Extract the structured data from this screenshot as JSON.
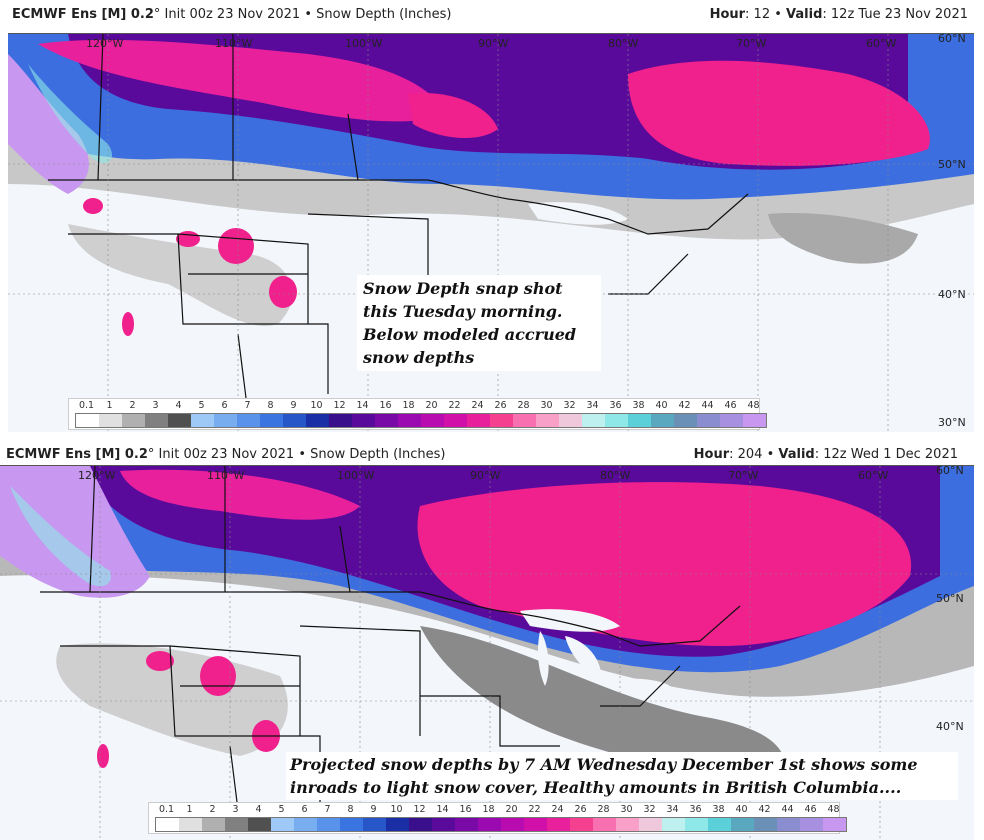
{
  "top_panel": {
    "title_model": "ECMWF Ens [M] 0.2",
    "title_degree": "°",
    "title_rest": " Init 00z 23 Nov 2021 • Snow Depth (Inches)",
    "hour_label": "Hour",
    "hour_value": ": 12 • ",
    "valid_label": "Valid",
    "valid_value": ": 12z Tue 23 Nov 2021",
    "annotation": "Snow Depth snap shot this Tuesday morning. Below modeled accrued snow depths"
  },
  "bottom_panel": {
    "title_model": "ECMWF Ens [M] 0.2",
    "title_degree": "°",
    "title_rest": " Init 00z 23 Nov 2021 • Snow Depth (Inches)",
    "hour_label": "Hour",
    "hour_value": ": 204 • ",
    "valid_label": "Valid",
    "valid_value": ": 12z Wed 1 Dec 2021",
    "annotation": "Projected snow depths by 7 AM Wednesday December 1st shows some inroads to light snow cover, Healthy amounts in British Columbia...."
  },
  "longitude_labels": [
    "120°W",
    "110°W",
    "100°W",
    "90°W",
    "80°W",
    "70°W",
    "60°W"
  ],
  "latitude_labels_top": [
    "60°N",
    "50°N",
    "40°N",
    "30°N"
  ],
  "latitude_labels_bottom": [
    "60°N",
    "50°N",
    "40°N"
  ],
  "colorbar": {
    "ticks": [
      "0.1",
      "1",
      "2",
      "3",
      "4",
      "5",
      "6",
      "7",
      "8",
      "9",
      "10",
      "12",
      "14",
      "16",
      "18",
      "20",
      "22",
      "24",
      "26",
      "28",
      "30",
      "32",
      "34",
      "36",
      "38",
      "40",
      "42",
      "44",
      "46",
      "48"
    ],
    "colors": [
      "#ffffff",
      "#e0e0e0",
      "#b0b0b0",
      "#808080",
      "#505050",
      "#9ec8f5",
      "#78aef0",
      "#5892ea",
      "#3a74e0",
      "#2656c8",
      "#1a2ea6",
      "#3a0f8c",
      "#5a0a9a",
      "#7a0aa8",
      "#9a0ab0",
      "#b80cb0",
      "#d010a8",
      "#e8209c",
      "#f54090",
      "#f870b0",
      "#f8a0c8",
      "#f0c8dc",
      "#bef0f0",
      "#8ee8e8",
      "#5cd0d8",
      "#5aa8c0",
      "#6a90b8",
      "#8a8ed0",
      "#a890e0",
      "#c898f0"
    ]
  },
  "legend_colors": {
    "light_gray": "#c8c8c8",
    "blue": "#3c6ee0",
    "purple": "#5a0a9a",
    "magenta": "#f0208c",
    "lavender": "#c898f0"
  }
}
